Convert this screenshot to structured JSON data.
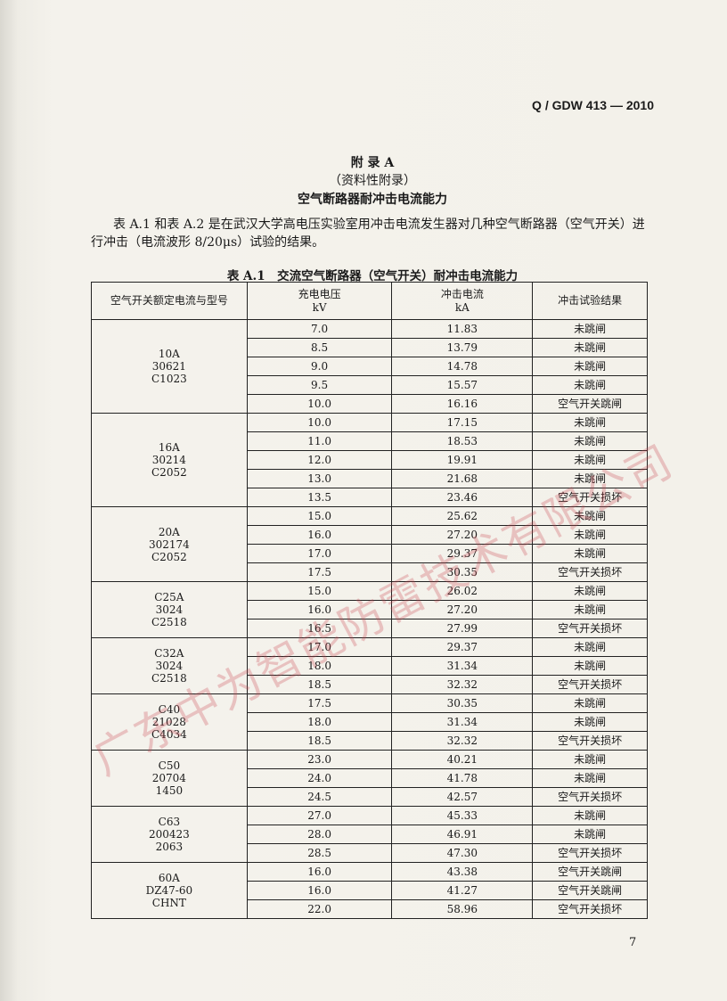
{
  "header": {
    "standard": "Q / GDW 413 — 2010"
  },
  "appendix": {
    "label": "附 录 A",
    "note": "（资料性附录）",
    "title": "空气断路器耐冲击电流能力"
  },
  "intro": "表 A.1 和表 A.2 是在武汉大学高电压实验室用冲击电流发生器对几种空气断路器（空气开关）进行冲击（电流波形 8/20μs）试验的结果。",
  "table": {
    "caption": "表 A.1　交流空气断路器（空气开关）耐冲击电流能力",
    "columns": [
      [
        "空气开关额定电流与型号"
      ],
      [
        "充电电压",
        "kV"
      ],
      [
        "冲击电流",
        "kA"
      ],
      [
        "冲击试验结果"
      ]
    ],
    "groups": [
      {
        "model": [
          "10A",
          "30621",
          "C1023"
        ],
        "rows": [
          [
            "7.0",
            "11.83",
            "未跳闸"
          ],
          [
            "8.5",
            "13.79",
            "未跳闸"
          ],
          [
            "9.0",
            "14.78",
            "未跳闸"
          ],
          [
            "9.5",
            "15.57",
            "未跳闸"
          ],
          [
            "10.0",
            "16.16",
            "空气开关跳闸"
          ]
        ]
      },
      {
        "model": [
          "16A",
          "30214",
          "C2052"
        ],
        "rows": [
          [
            "10.0",
            "17.15",
            "未跳闸"
          ],
          [
            "11.0",
            "18.53",
            "未跳闸"
          ],
          [
            "12.0",
            "19.91",
            "未跳闸"
          ],
          [
            "13.0",
            "21.68",
            "未跳闸"
          ],
          [
            "13.5",
            "23.46",
            "空气开关损坏"
          ]
        ]
      },
      {
        "model": [
          "20A",
          "302174",
          "C2052"
        ],
        "rows": [
          [
            "15.0",
            "25.62",
            "未跳闸"
          ],
          [
            "16.0",
            "27.20",
            "未跳闸"
          ],
          [
            "17.0",
            "29.37",
            "未跳闸"
          ],
          [
            "17.5",
            "30.35",
            "空气开关损坏"
          ]
        ]
      },
      {
        "model": [
          "C25A",
          "3024",
          "C2518"
        ],
        "rows": [
          [
            "15.0",
            "26.02",
            "未跳闸"
          ],
          [
            "16.0",
            "27.20",
            "未跳闸"
          ],
          [
            "16.5",
            "27.99",
            "空气开关损坏"
          ]
        ]
      },
      {
        "model": [
          "C32A",
          "3024",
          "C2518"
        ],
        "rows": [
          [
            "17.0",
            "29.37",
            "未跳闸"
          ],
          [
            "18.0",
            "31.34",
            "未跳闸"
          ],
          [
            "18.5",
            "32.32",
            "空气开关损坏"
          ]
        ]
      },
      {
        "model": [
          "C40",
          "21028",
          "C4034"
        ],
        "rows": [
          [
            "17.5",
            "30.35",
            "未跳闸"
          ],
          [
            "18.0",
            "31.34",
            "未跳闸"
          ],
          [
            "18.5",
            "32.32",
            "空气开关损坏"
          ]
        ]
      },
      {
        "model": [
          "C50",
          "20704",
          "1450"
        ],
        "rows": [
          [
            "23.0",
            "40.21",
            "未跳闸"
          ],
          [
            "24.0",
            "41.78",
            "未跳闸"
          ],
          [
            "24.5",
            "42.57",
            "空气开关损坏"
          ]
        ]
      },
      {
        "model": [
          "C63",
          "200423",
          "2063"
        ],
        "rows": [
          [
            "27.0",
            "45.33",
            "未跳闸"
          ],
          [
            "28.0",
            "46.91",
            "未跳闸"
          ],
          [
            "28.5",
            "47.30",
            "空气开关损坏"
          ]
        ]
      },
      {
        "model": [
          "60A",
          "DZ47-60",
          "CHNT"
        ],
        "rows": [
          [
            "16.0",
            "43.38",
            "空气开关跳闸"
          ],
          [
            "16.0",
            "41.27",
            "空气开关跳闸"
          ],
          [
            "22.0",
            "58.96",
            "空气开关损坏"
          ]
        ]
      }
    ]
  },
  "watermark": "广东中为智能防雷技术有限公司",
  "page_number": "7"
}
